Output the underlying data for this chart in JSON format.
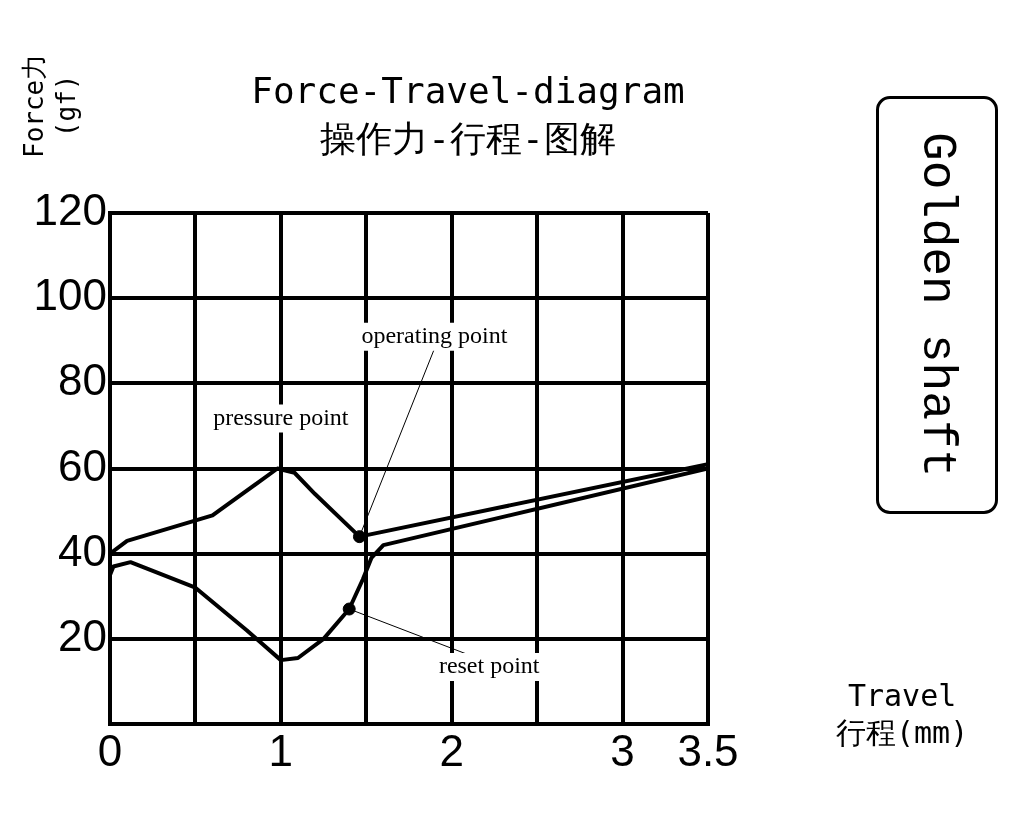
{
  "chart_data": {
    "type": "line",
    "title": "Force-Travel-diagram",
    "subtitle": "操作力-行程-图解",
    "xlabel": "Travel\n行程(mm)",
    "ylabel": "Force力\n(gf)",
    "xlim": [
      0,
      3.5
    ],
    "xticks": [
      0,
      {
        "value": 0.5,
        "label": null
      },
      1,
      {
        "value": 1.5,
        "label": null
      },
      2,
      {
        "value": 2.5,
        "label": null
      },
      3,
      3.5
    ],
    "ylim": [
      0,
      120
    ],
    "yticks": [
      {
        "value": 0,
        "label": null
      },
      20,
      40,
      60,
      80,
      100,
      120
    ],
    "grid": true,
    "marker": "none",
    "series": [
      {
        "color": "#000000",
        "x": [
          0,
          0.1,
          0.6,
          0.98,
          1.08,
          1.2,
          1.46,
          3.5
        ],
        "values": [
          40,
          43,
          49,
          60,
          59,
          54,
          44,
          61
        ]
      },
      {
        "color": "#000000",
        "x": [
          0,
          0.02,
          0.12,
          0.5,
          0.8,
          1.0,
          1.1,
          1.25,
          1.4,
          1.48,
          1.53,
          1.6,
          3.5
        ],
        "values": [
          35,
          37,
          38,
          32,
          22,
          15,
          15.5,
          20,
          27,
          34,
          39,
          42,
          60
        ]
      },
      {
        "type": "scatter",
        "marker": "circle",
        "color": "#000000",
        "x": [
          1.46,
          1.4
        ],
        "values": [
          44,
          27
        ]
      }
    ],
    "annotations": [
      {
        "text": "pressure point",
        "x": 1.0,
        "y": 60
      },
      {
        "text": "operating point",
        "x": 1.46,
        "y": 44
      },
      {
        "text": "reset point",
        "x": 1.4,
        "y": 27
      },
      "Golden shaft"
    ]
  }
}
